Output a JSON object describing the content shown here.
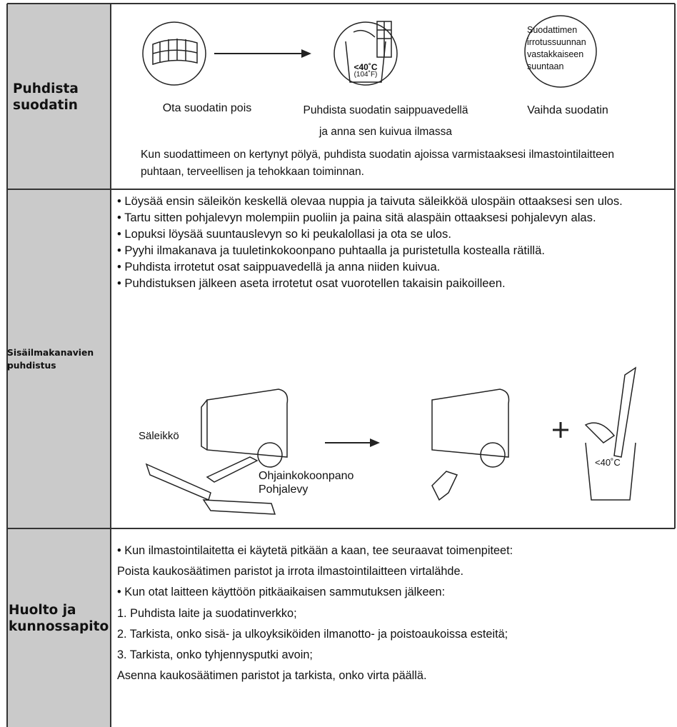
{
  "sections": [
    {
      "heading": "Puhdista suodatin",
      "steps": [
        {
          "caption": "Ota suodatin pois"
        },
        {
          "caption": "Puhdista suodatin saippuavedellä ja anna sen kuivua ilmassa",
          "temperature": "<40˚C",
          "temperature_f": "(104˚F)"
        },
        {
          "caption": "Vaihda suodatin",
          "note": "Suodattimen irrotussuunnan vastakkaiseen suuntaan"
        }
      ],
      "text": "Kun suodattimeen on kertynyt pölyä, puhdista suodatin ajoissa varmistaaksesi ilmastointilaitteen puhtaan, terveellisen ja tehokkaan toiminnan."
    },
    {
      "heading": "Sisäilmakanavien puhdistus",
      "items": [
        "• Löysää ensin säleikön keskellä olevaa nuppia ja taivuta säleikköä ulospäin ottaaksesi sen ulos.",
        "• Tartu sitten pohjalevyn molempiin puoliin ja paina sitä alaspäin ottaaksesi pohjalevyn alas.",
        "• Lopuksi löysää suuntauslevyn so ki peukalollasi ja ota se ulos.",
        "• Pyyhi ilmakanava ja tuuletinkokoonpano puhtaalla ja puristetulla kostealla rätillä.",
        "• Puhdista irrotetut osat saippuavedellä ja anna niiden kuivua.",
        "• Puhdistuksen jälkeen aseta irrotetut osat vuorotellen takaisin paikoilleen."
      ],
      "labels": [
        "Säleikkö",
        "Ohjainkokoonpano",
        "Pohjalevy",
        "<40˚C"
      ]
    },
    {
      "heading": "Huolto ja kunnossapito",
      "lines": [
        "• Kun ilmastointilaitetta ei käytetä pitkään a kaan, tee seuraavat toimenpiteet:",
        "Poista kaukosäätimen paristot ja irrota ilmastointilaitteen virtalähde.",
        "• Kun otat laitteen käyttöön pitkäaikaisen sammutuksen jälkeen:",
        "1. Puhdista laite ja suodatinverkko;",
        "2. Tarkista, onko sisä- ja ulkoyksiköiden ilmanotto- ja poistoaukoissa esteitä;",
        "3. Tarkista, onko tyhjennysputki avoin;",
        "Asenna kaukosäätimen paristot ja tarkista, onko virta päällä."
      ]
    }
  ]
}
